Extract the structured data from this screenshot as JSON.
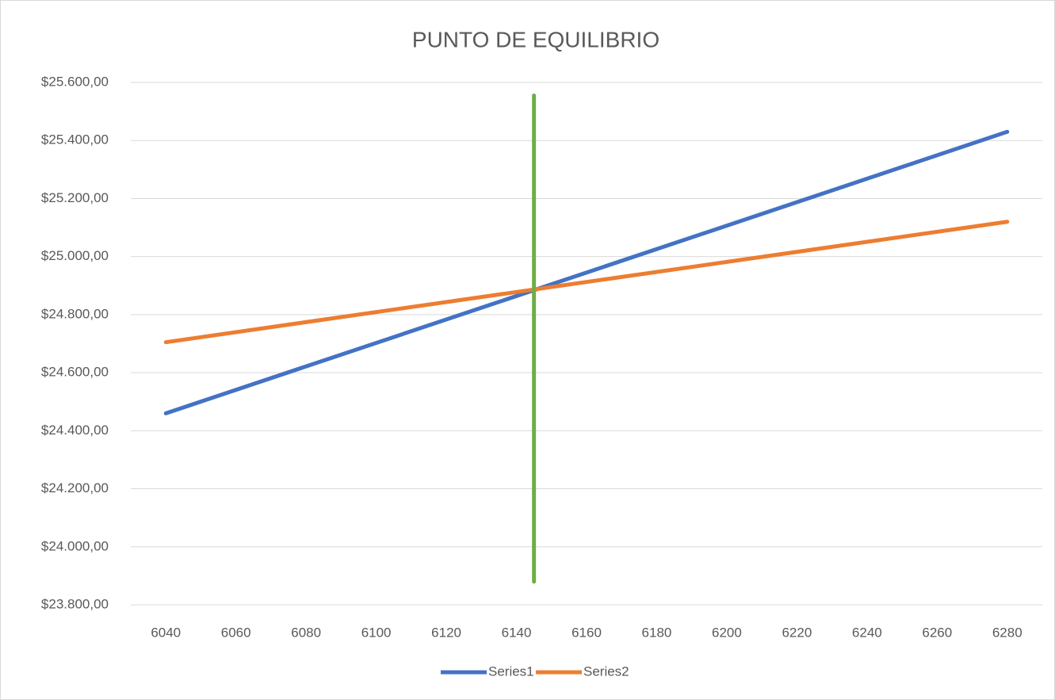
{
  "chart_data": {
    "type": "line",
    "title": "PUNTO DE EQUILIBRIO",
    "series": [
      {
        "name": "Series1",
        "color": "#4472c4",
        "x": [
          6040,
          6280
        ],
        "values": [
          24460,
          25430
        ]
      },
      {
        "name": "Series2",
        "color": "#ed7d31",
        "x": [
          6040,
          6280
        ],
        "values": [
          24705,
          25120
        ]
      },
      {
        "color": "#70ad47",
        "x": [
          6145,
          6145
        ],
        "values": [
          25555,
          23880
        ]
      }
    ],
    "xlim": [
      6030,
      6290
    ],
    "xticks": [
      6040,
      6060,
      6080,
      6100,
      6120,
      6140,
      6160,
      6180,
      6200,
      6220,
      6240,
      6260,
      6280
    ],
    "ylim": [
      23800,
      25600
    ],
    "yticks": [
      {
        "value": 23800,
        "label": "$23.800,00"
      },
      {
        "value": 24000,
        "label": "$24.000,00"
      },
      {
        "value": 24200,
        "label": "$24.200,00"
      },
      {
        "value": 24400,
        "label": "$24.400,00"
      },
      {
        "value": 24600,
        "label": "$24.600,00"
      },
      {
        "value": 24800,
        "label": "$24.800,00"
      },
      {
        "value": 25000,
        "label": "$25.000,00"
      },
      {
        "value": 25200,
        "label": "$25.200,00"
      },
      {
        "value": 25400,
        "label": "$25.400,00"
      },
      {
        "value": 25600,
        "label": "$25.600,00"
      }
    ],
    "grid": true,
    "legend": "bottom"
  }
}
